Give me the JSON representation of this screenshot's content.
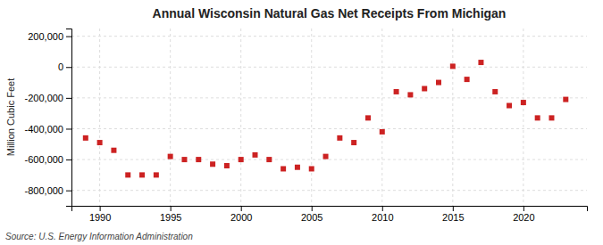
{
  "chart_data": {
    "type": "scatter",
    "title": "Annual Wisconsin Natural Gas Net Receipts From Michigan",
    "y_label": "Million Cubic Feet",
    "annotations": [
      "Source: U.S. Energy Information Administration"
    ],
    "x": [
      1989,
      1990,
      1991,
      1992,
      1993,
      1994,
      1995,
      1996,
      1997,
      1998,
      1999,
      2000,
      2001,
      2002,
      2003,
      2004,
      2005,
      2006,
      2007,
      2008,
      2009,
      2010,
      2011,
      2012,
      2013,
      2014,
      2015,
      2016,
      2017,
      2018,
      2019,
      2020,
      2021,
      2022,
      2023
    ],
    "values": [
      -460000,
      -490000,
      -540000,
      -700000,
      -700000,
      -700000,
      -580000,
      -600000,
      -600000,
      -630000,
      -640000,
      -600000,
      -570000,
      -600000,
      -660000,
      -650000,
      -660000,
      -580000,
      -460000,
      -490000,
      -330000,
      -420000,
      -160000,
      -180000,
      -140000,
      -100000,
      5000,
      -80000,
      30000,
      -160000,
      -250000,
      -230000,
      -330000,
      -330000,
      -210000
    ],
    "color": "#cc2222",
    "marker": "square",
    "xlim": [
      1988.0,
      2024.5
    ],
    "xticks": [
      1990,
      1995,
      2000,
      2005,
      2010,
      2015,
      2020
    ],
    "ylim": [
      -900000,
      250000
    ],
    "yticks": [
      {
        "value": -800000,
        "label": "-800,000"
      },
      {
        "value": -600000,
        "label": "-600,000"
      },
      {
        "value": -400000,
        "label": "-400,000"
      },
      {
        "value": -200000,
        "label": "-200,000"
      },
      0,
      {
        "value": 200000,
        "label": "200,000"
      }
    ],
    "grid": true
  }
}
